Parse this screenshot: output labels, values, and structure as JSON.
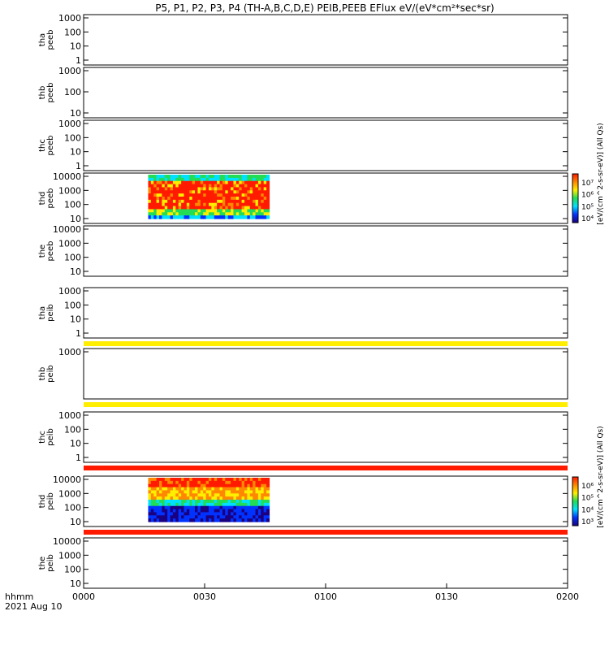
{
  "title": "P5, P1, P2, P3, P4 (TH-A,B,C,D,E) PEIB,PEEB EFlux eV/(eV*cm²*sec*sr)",
  "chart_data": {
    "type": "heatmap",
    "x_axis": {
      "ticks": [
        "0000",
        "0030",
        "0100",
        "0130",
        "0200"
      ],
      "corner_label_1": "hhmm",
      "corner_label_2": "2021 Aug 10"
    },
    "panels": [
      {
        "id": "tha-peeb",
        "label_1": "tha",
        "label_2": "peeb",
        "y_ticks": [
          "1000",
          "100",
          "10",
          "1"
        ],
        "spectrogram": false
      },
      {
        "id": "thb-peeb",
        "label_1": "thb",
        "label_2": "peeb",
        "y_ticks": [
          "1000",
          "100",
          "10"
        ],
        "spectrogram": false
      },
      {
        "id": "thc-peeb",
        "label_1": "thc",
        "label_2": "peeb",
        "y_ticks": [
          "1000",
          "100",
          "10",
          "1"
        ],
        "spectrogram": false
      },
      {
        "id": "thd-peeb",
        "label_1": "thd",
        "label_2": "peeb",
        "y_ticks": [
          "10000",
          "1000",
          "100",
          "10"
        ],
        "spectrogram": true,
        "data_start": "0016",
        "data_end": "0046",
        "colorbar": "peeb"
      },
      {
        "id": "the-peeb",
        "label_1": "the",
        "label_2": "peeb",
        "y_ticks": [
          "10000",
          "1000",
          "100",
          "10"
        ],
        "spectrogram": false
      },
      {
        "id": "tha-peib",
        "label_1": "tha",
        "label_2": "peib",
        "y_ticks": [
          "1000",
          "100",
          "10",
          "1"
        ],
        "spectrogram": false,
        "bottom_band": "#ffee00"
      },
      {
        "id": "thb-peib",
        "label_1": "thb",
        "label_2": "peib",
        "y_ticks": [
          "1000"
        ],
        "spectrogram": false,
        "bottom_band": "#ffee00"
      },
      {
        "id": "thc-peib",
        "label_1": "thc",
        "label_2": "peib",
        "y_ticks": [
          "1000",
          "100",
          "10",
          "1"
        ],
        "spectrogram": false,
        "bottom_band": "#ff1a00"
      },
      {
        "id": "thd-peib",
        "label_1": "thd",
        "label_2": "peib",
        "y_ticks": [
          "10000",
          "1000",
          "100",
          "10"
        ],
        "spectrogram": true,
        "data_start": "0016",
        "data_end": "0046",
        "colorbar": "peib",
        "bottom_band": "#ff1a00"
      },
      {
        "id": "the-peib",
        "label_1": "the",
        "label_2": "peib",
        "y_ticks": [
          "10000",
          "1000",
          "100",
          "10"
        ],
        "spectrogram": false
      }
    ],
    "colorbars": {
      "peeb": {
        "ticks": [
          "10⁷",
          "10⁶",
          "10⁵",
          "10⁴"
        ],
        "label": "[eV/(cm^2-s-sr-eV)] (All Qs)"
      },
      "peib": {
        "ticks": [
          "10⁶",
          "10⁵",
          "10⁴",
          "10³"
        ],
        "label": "[eV/(cm^2-s-sr-eV)] (All Qs)"
      }
    },
    "colors": {
      "red": "#ff1a00",
      "orange": "#ff8800",
      "yellow": "#ffee00",
      "green": "#22dd55",
      "cyan": "#00e0ff",
      "blue": "#0033ff",
      "navy": "#1a0080"
    }
  }
}
